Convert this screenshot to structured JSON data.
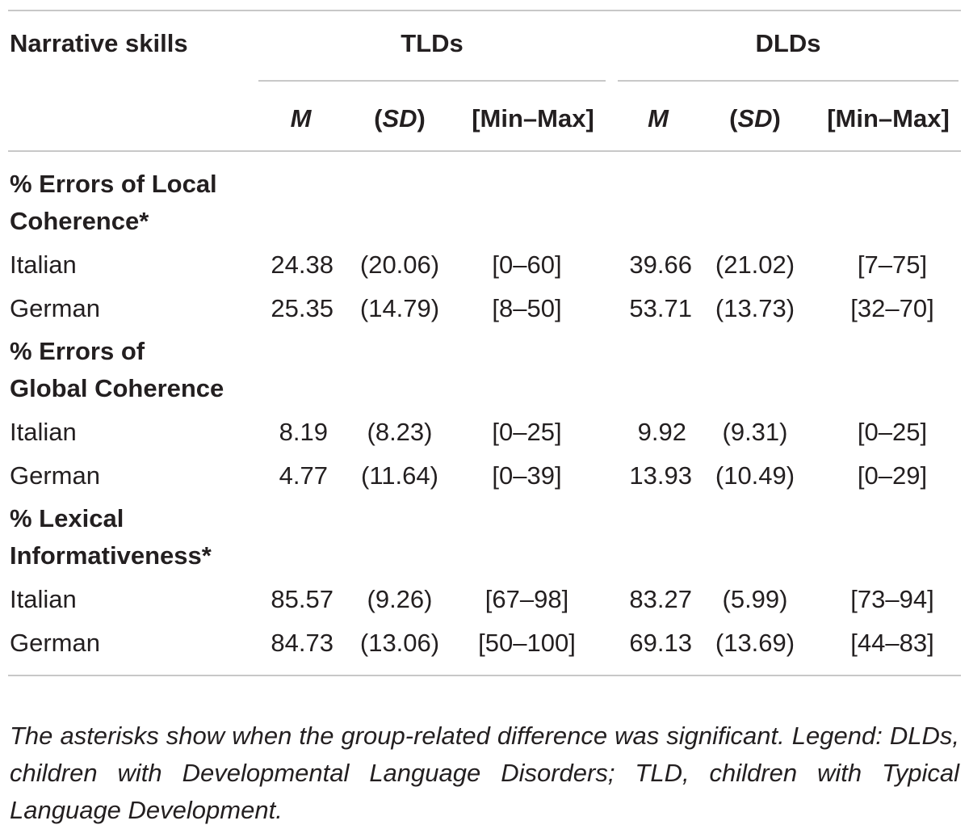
{
  "table": {
    "header": {
      "row_label": "Narrative skills",
      "groups": [
        "TLDs",
        "DLDs"
      ],
      "stats": {
        "m": "M",
        "sd_open": "(",
        "sd": "SD",
        "sd_close": ")",
        "range": "[Min–Max]"
      }
    },
    "sections": [
      {
        "title_line1": "% Errors of Local",
        "title_line2": "Coherence*",
        "rows": [
          {
            "label": "Italian",
            "tld": [
              "24.38",
              "(20.06)",
              "[0–60]"
            ],
            "dld": [
              "39.66",
              "(21.02)",
              "[7–75]"
            ]
          },
          {
            "label": "German",
            "tld": [
              "25.35",
              "(14.79)",
              "[8–50]"
            ],
            "dld": [
              "53.71",
              "(13.73)",
              "[32–70]"
            ]
          }
        ]
      },
      {
        "title_line1": "% Errors of",
        "title_line2": "Global Coherence",
        "rows": [
          {
            "label": "Italian",
            "tld": [
              "8.19",
              "(8.23)",
              "[0–25]"
            ],
            "dld": [
              "9.92",
              "(9.31)",
              "[0–25]"
            ]
          },
          {
            "label": "German",
            "tld": [
              "4.77",
              "(11.64)",
              "[0–39]"
            ],
            "dld": [
              "13.93",
              "(10.49)",
              "[0–29]"
            ]
          }
        ]
      },
      {
        "title_line1": "% Lexical",
        "title_line2": "Informativeness*",
        "rows": [
          {
            "label": "Italian",
            "tld": [
              "85.57",
              "(9.26)",
              "[67–98]"
            ],
            "dld": [
              "83.27",
              "(5.99)",
              "[73–94]"
            ]
          },
          {
            "label": "German",
            "tld": [
              "84.73",
              "(13.06)",
              "[50–100]"
            ],
            "dld": [
              "69.13",
              "(13.69)",
              "[44–83]"
            ]
          }
        ]
      }
    ],
    "note": "The asterisks show when the group-related difference was significant. Legend: DLDs, children with Developmental Language Disorders; TLD, children with Typical Language Development."
  }
}
